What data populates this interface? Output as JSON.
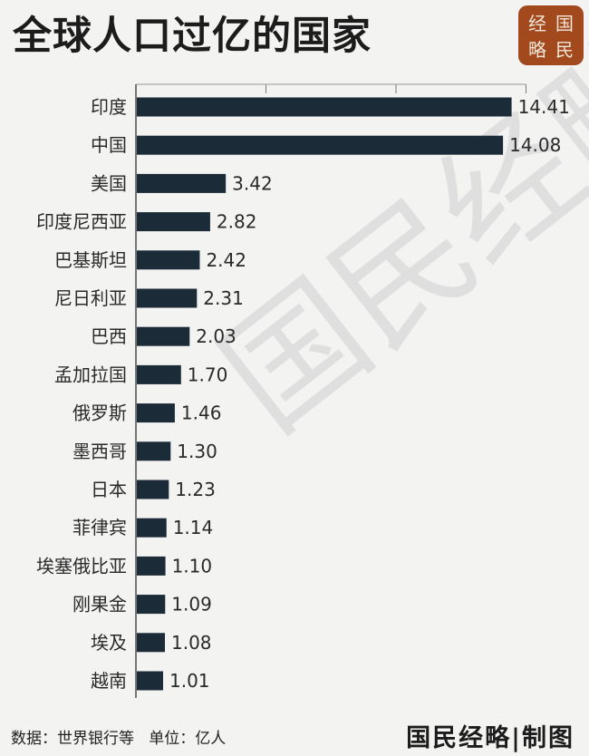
{
  "title": "全球人口过亿的国家",
  "seal": [
    "经",
    "国",
    "略",
    "民"
  ],
  "watermark": "国民经略",
  "footer": {
    "source": "数据：世界银行等",
    "unit": "单位：亿人",
    "brand": "国民经略|制图"
  },
  "colors": {
    "bar": "#1b2b37",
    "seal": "#a24a1d",
    "background": "#f3f3f2"
  },
  "chart_data": {
    "type": "bar",
    "orientation": "horizontal",
    "categories": [
      "印度",
      "中国",
      "美国",
      "印度尼西亚",
      "巴基斯坦",
      "尼日利亚",
      "巴西",
      "孟加拉国",
      "俄罗斯",
      "墨西哥",
      "日本",
      "菲律宾",
      "埃塞俄比亚",
      "刚果金",
      "埃及",
      "越南"
    ],
    "values": [
      14.41,
      14.08,
      3.42,
      2.82,
      2.42,
      2.31,
      2.03,
      1.7,
      1.46,
      1.3,
      1.23,
      1.14,
      1.1,
      1.09,
      1.08,
      1.01
    ],
    "labels": [
      "14.41",
      "14.08",
      "3.42",
      "2.82",
      "2.42",
      "2.31",
      "2.03",
      "1.70",
      "1.46",
      "1.30",
      "1.23",
      "1.14",
      "1.10",
      "1.09",
      "1.08",
      "1.01"
    ],
    "xlim": [
      0,
      15
    ],
    "grid": true,
    "title": "全球人口过亿的国家",
    "xlabel": "",
    "ylabel": ""
  }
}
